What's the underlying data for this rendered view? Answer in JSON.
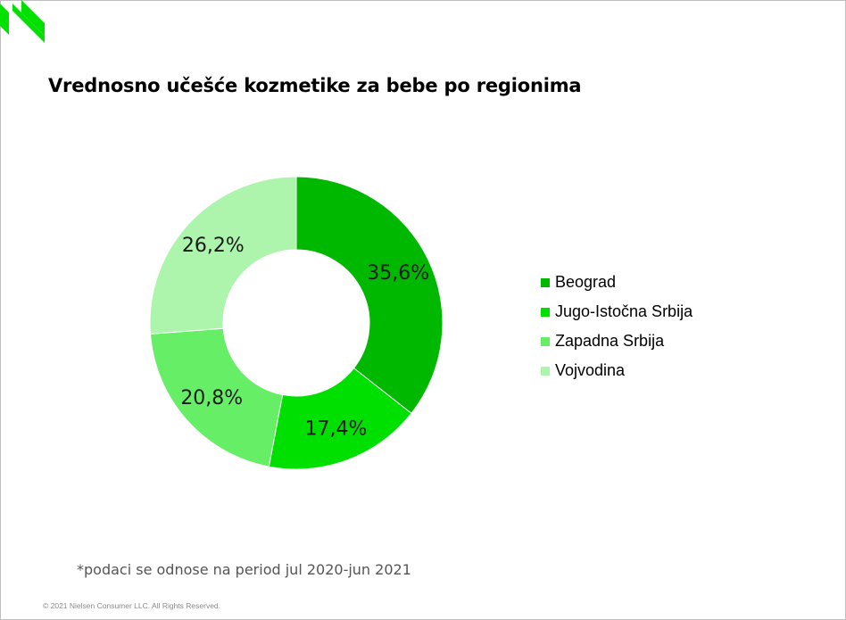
{
  "title": "Vrednosno učešće kozmetike za bebe po regionima",
  "footnote": "*podaci se odnose na period jul 2020-jun 2021",
  "copyright": "© 2021 Nielsen Consumer LLC. All Rights Reserved.",
  "logo": {
    "icon": "nielsen-logo-icon",
    "color": "#00e100"
  },
  "chart_data": {
    "type": "pie",
    "variant": "donut",
    "title": "Vrednosno učešće kozmetike za bebe po regionima",
    "categories": [
      "Beograd",
      "Jugo-Istočna Srbija",
      "Zapadna Srbija",
      "Vojvodina"
    ],
    "values": [
      35.6,
      17.4,
      20.8,
      26.2
    ],
    "labels": [
      "35,6%",
      "17,4%",
      "20,8%",
      "26,2%"
    ],
    "colors": [
      "#00b800",
      "#00e000",
      "#66ee66",
      "#adf5ad"
    ],
    "legend": {
      "placement": "right",
      "items": [
        {
          "label": "Beograd",
          "color": "#00b800"
        },
        {
          "label": "Jugo-Istočna Srbija",
          "color": "#00e000"
        },
        {
          "label": "Zapadna Srbija",
          "color": "#66ee66"
        },
        {
          "label": "Vojvodina",
          "color": "#adf5ad"
        }
      ]
    }
  }
}
